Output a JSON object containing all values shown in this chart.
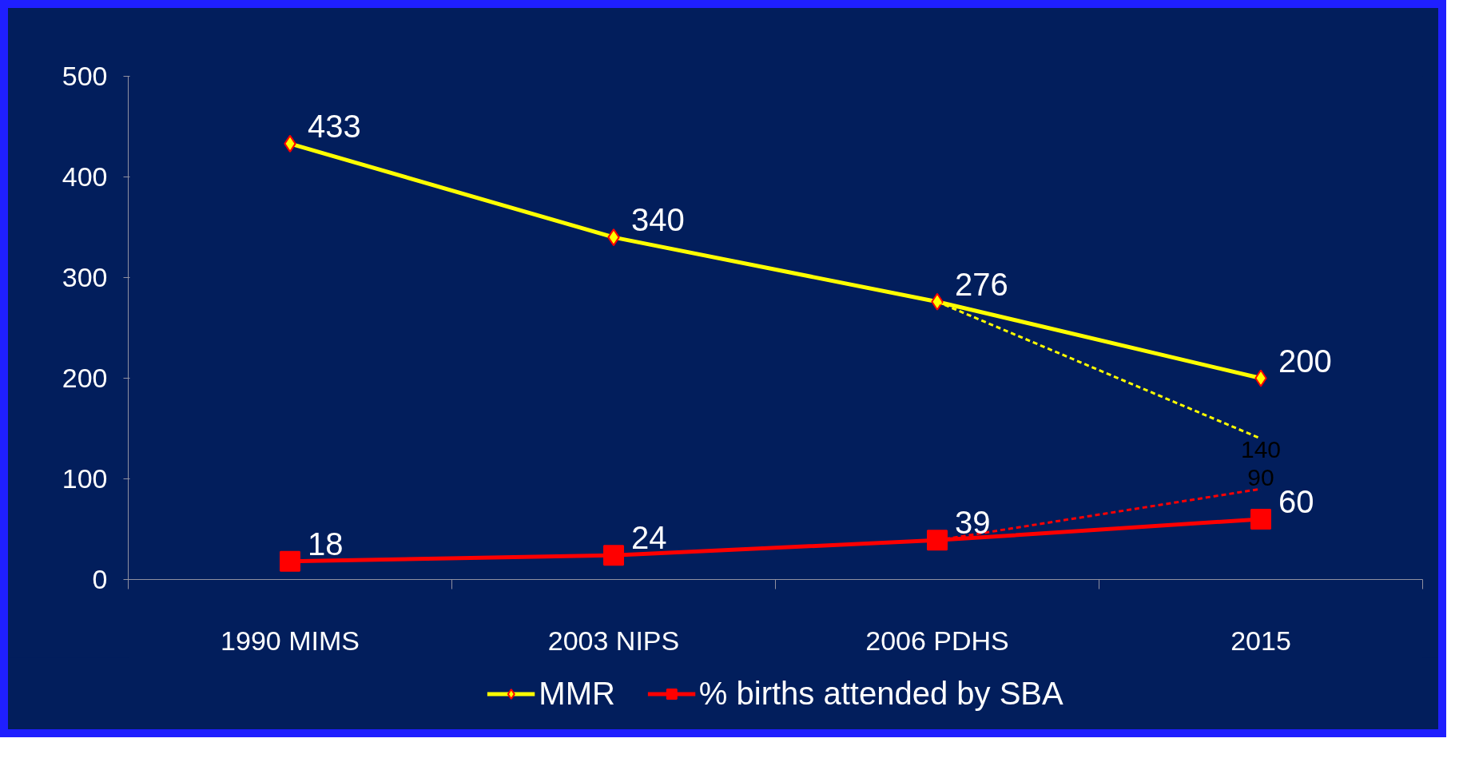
{
  "chart_data": {
    "type": "line",
    "categories": [
      "1990 MIMS",
      "2003 NIPS",
      "2006 PDHS",
      "2015"
    ],
    "ylim": [
      0,
      500
    ],
    "yticks": [
      0,
      100,
      200,
      300,
      400,
      500
    ],
    "grid": false,
    "legend": "bottom",
    "series": [
      {
        "name": "MMR",
        "color": "#ffff00",
        "marker": "diamond",
        "line_style": "solid",
        "values": [
          433,
          340,
          276,
          200
        ],
        "value_labels": [
          "433",
          "340",
          "276",
          "200"
        ]
      },
      {
        "name": "% births attended by SBA",
        "color": "#ff0000",
        "marker": "square",
        "line_style": "solid",
        "values": [
          18,
          24,
          39,
          60
        ],
        "value_labels": [
          "18",
          "24",
          "39",
          "60"
        ]
      },
      {
        "color": "#ffff00",
        "marker": "none",
        "line_style": "dashed",
        "values": [
          null,
          null,
          276,
          140
        ],
        "value_labels": [
          null,
          null,
          null,
          "140"
        ]
      },
      {
        "color": "#ff0000",
        "marker": "none",
        "line_style": "dashed",
        "values": [
          null,
          null,
          39,
          90
        ],
        "value_labels": [
          null,
          null,
          null,
          "90"
        ]
      }
    ]
  }
}
